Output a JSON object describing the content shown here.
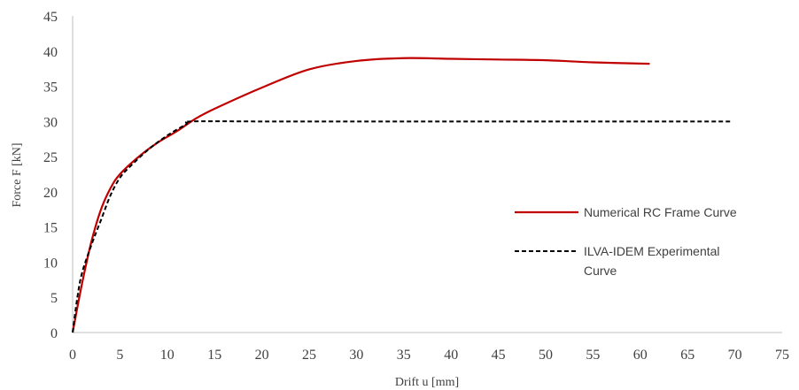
{
  "chart_data": {
    "type": "line",
    "xlabel": "Drift u [mm]",
    "ylabel": "Force F [kN]",
    "xlim": [
      0,
      75
    ],
    "ylim": [
      0,
      45
    ],
    "xticks": [
      0,
      5,
      10,
      15,
      20,
      25,
      30,
      35,
      40,
      45,
      50,
      55,
      60,
      65,
      70,
      75
    ],
    "yticks": [
      0,
      5,
      10,
      15,
      20,
      25,
      30,
      35,
      40,
      45
    ],
    "grid": false,
    "legend_position": "right",
    "series": [
      {
        "name": "Numerical RC Frame Curve",
        "color": "#c00000",
        "dash": "solid",
        "x": [
          0,
          1,
          2,
          3,
          4,
          5,
          7,
          9,
          11,
          13,
          15,
          20,
          25,
          30,
          35,
          40,
          45,
          50,
          55,
          61
        ],
        "y": [
          0,
          7,
          13,
          17.5,
          20.5,
          22.5,
          25,
          27,
          28.6,
          30.4,
          31.8,
          34.8,
          37.4,
          38.6,
          39.0,
          38.9,
          38.8,
          38.7,
          38.4,
          38.2
        ]
      },
      {
        "name": "ILVA-IDEM Experimental Curve",
        "color": "#000000",
        "dash": "dashed",
        "x": [
          0,
          0.5,
          1,
          2,
          3,
          4,
          5,
          6,
          8,
          10,
          12,
          12.5,
          20,
          30,
          40,
          50,
          60,
          69.5
        ],
        "y": [
          0,
          5,
          8.5,
          12.5,
          16,
          19.5,
          22,
          23.5,
          26,
          28,
          29.6,
          30,
          30,
          30,
          30,
          30,
          30,
          30
        ]
      }
    ]
  }
}
